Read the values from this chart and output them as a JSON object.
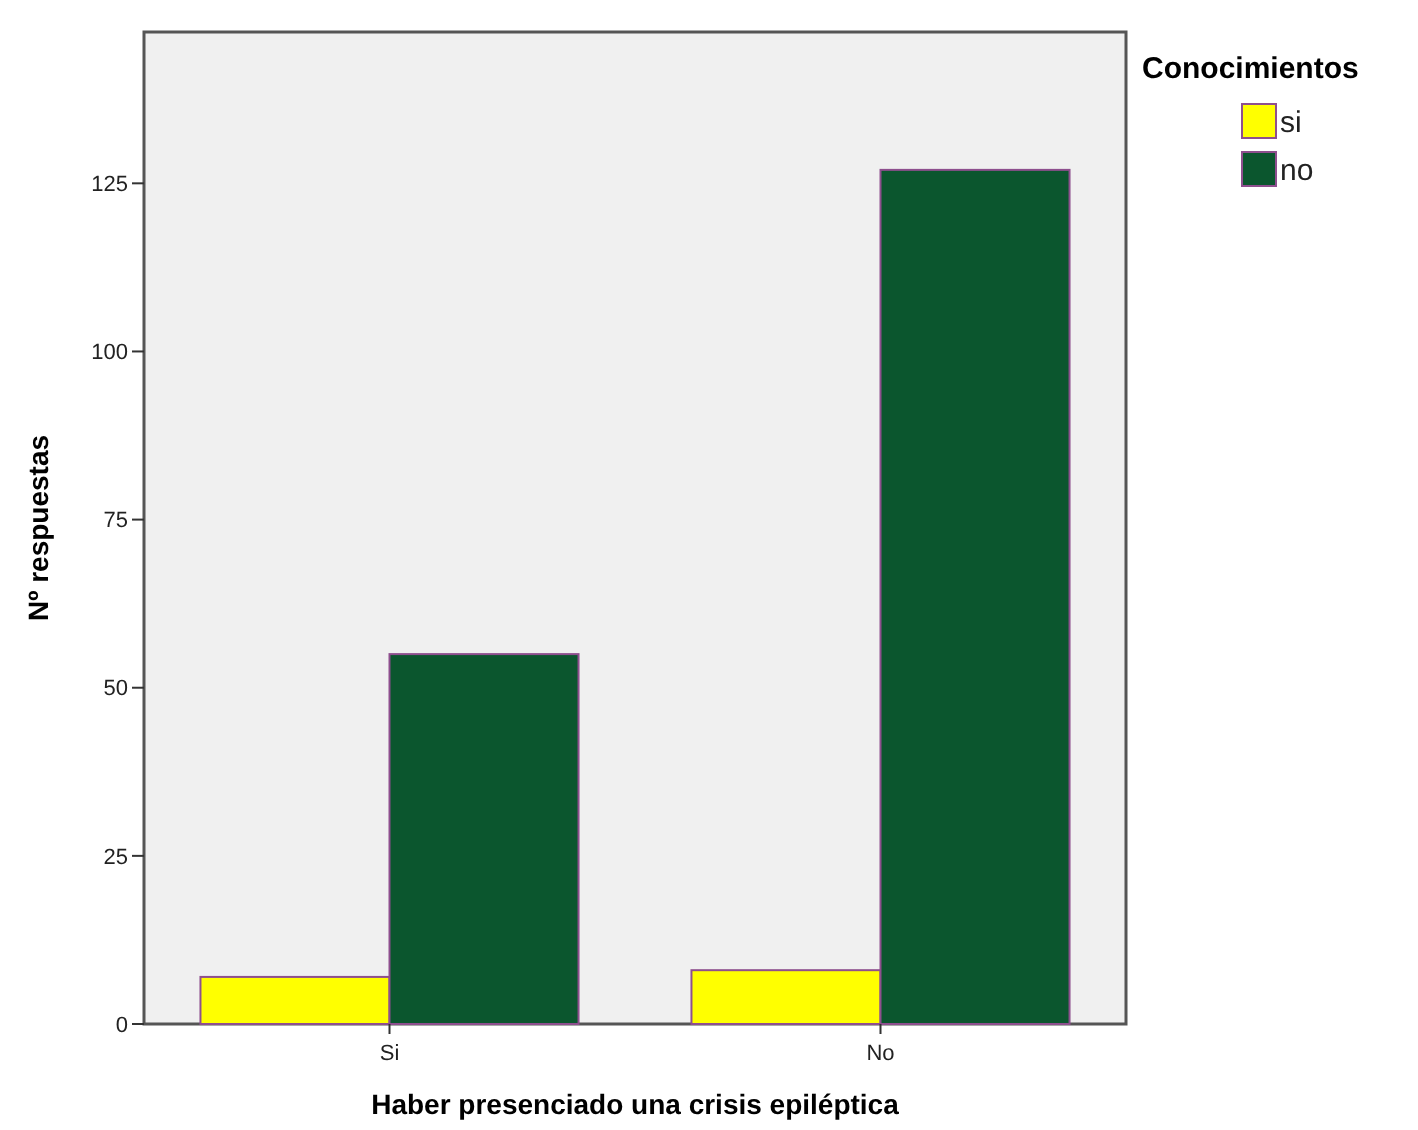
{
  "chart_data": {
    "type": "bar",
    "xlabel": "Haber presenciado una crisis epiléptica",
    "ylabel": "Nº respuestas",
    "legend_title": "Conocimientos",
    "categories": [
      "Si",
      "No"
    ],
    "series": [
      {
        "name": "si",
        "color": "#ffff00",
        "values": [
          7,
          8
        ]
      },
      {
        "name": "no",
        "color": "#0b562e",
        "values": [
          55,
          127
        ]
      }
    ],
    "ylim": [
      0,
      147.5
    ],
    "yticks": [
      0,
      25,
      50,
      75,
      100,
      125
    ],
    "grid": false,
    "legend": "top right"
  }
}
